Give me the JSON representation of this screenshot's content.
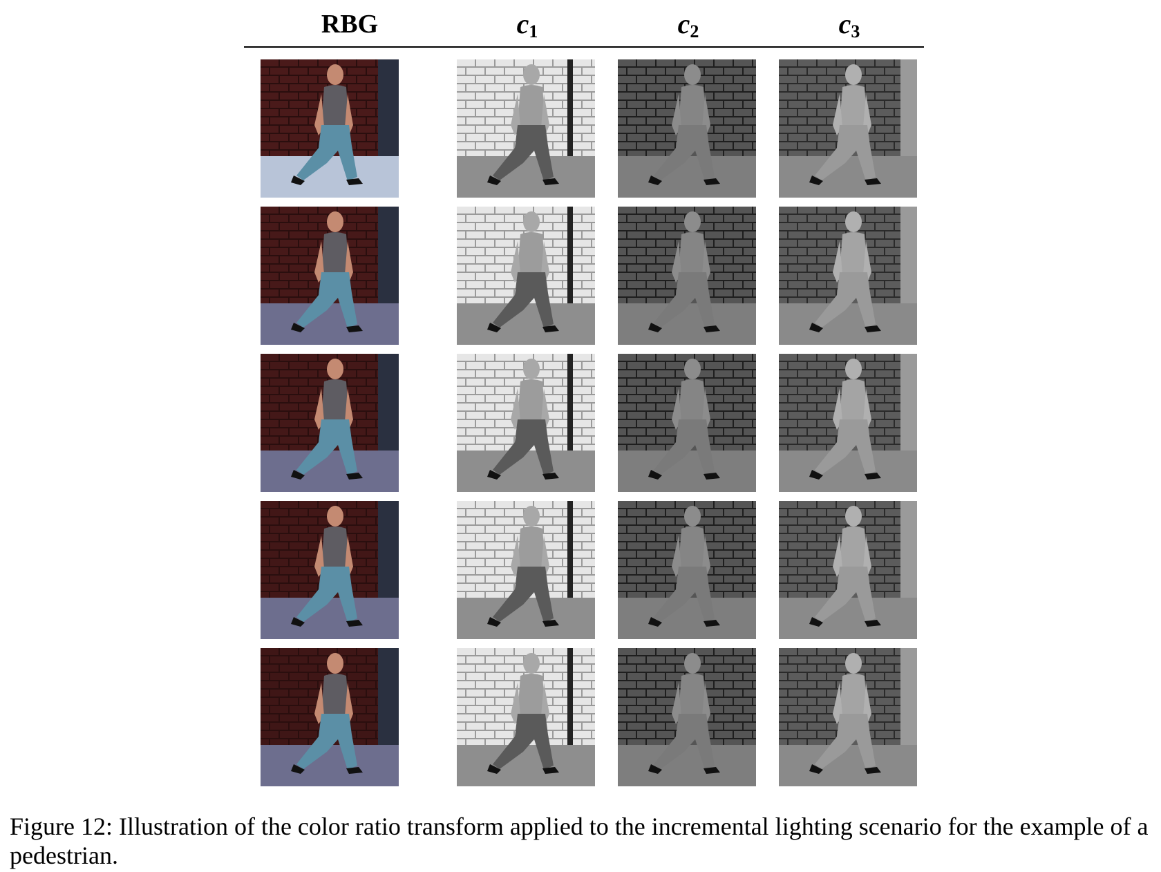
{
  "columns": [
    "RBG",
    "c",
    "c",
    "c"
  ],
  "column_subscripts": [
    "",
    "1",
    "2",
    "3"
  ],
  "rows": 5,
  "cell_kinds": [
    "rgb",
    "c1",
    "c2",
    "c3"
  ],
  "colors": {
    "brick": "#4a1a1a",
    "ground": "#6d6e8e",
    "shirt": "#5e5c62",
    "pants": "#5b8fa6",
    "skin": "#c48a72",
    "gray_bg_c1": "#c8c8c8",
    "gray_bg_c2": "#3a3a3a",
    "gray_bg_c3": "#505050"
  },
  "caption": "Figure 12: Illustration of the color ratio transform applied to the incremental lighting scenario for the example of a pedestrian."
}
